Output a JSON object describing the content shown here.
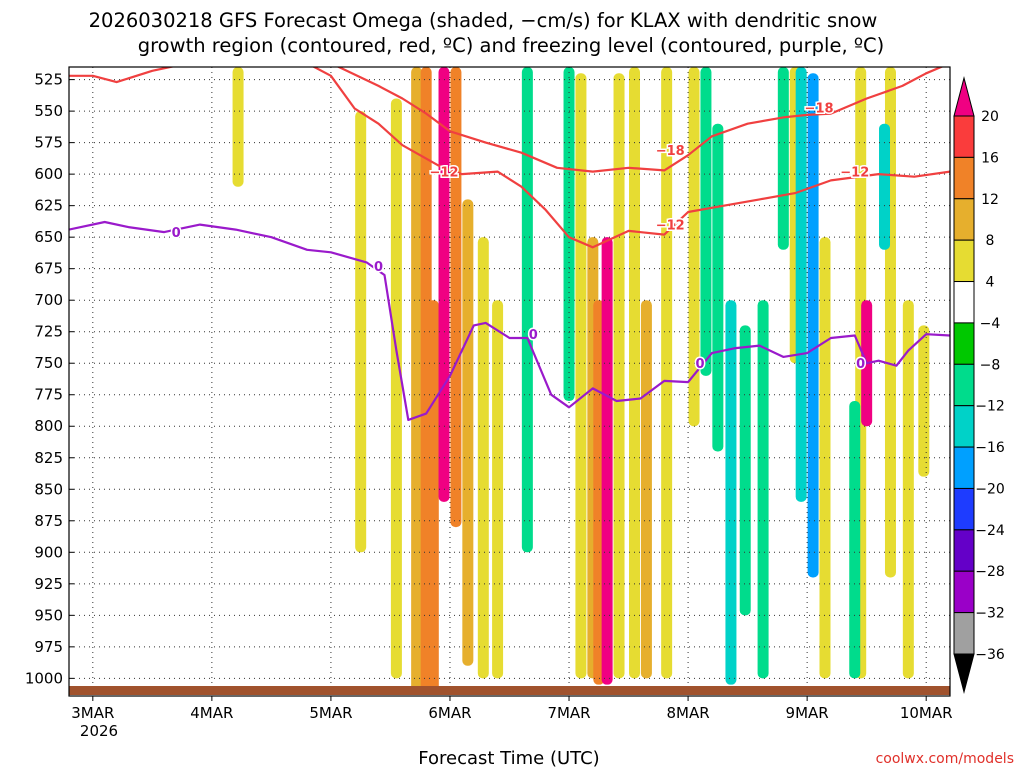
{
  "chart_data": {
    "type": "heatmap",
    "title": [
      "2026030218 GFS Forecast Omega (shaded, −cm/s) for KLAX with dendritic snow",
      "growth region (contoured, red, ºC) and freezing level (contoured, purple, ºC)"
    ],
    "xlabel": "Forecast Time (UTC)",
    "ylabel": "",
    "credit": "coolwx.com/models",
    "x_ticks": [
      "3MAR",
      "4MAR",
      "5MAR",
      "6MAR",
      "7MAR",
      "8MAR",
      "9MAR",
      "10MAR"
    ],
    "x_year": "2026",
    "x_range_days": [
      2.8,
      10.2
    ],
    "y_ticks": [
      525,
      550,
      575,
      600,
      625,
      650,
      675,
      700,
      725,
      750,
      775,
      800,
      825,
      850,
      875,
      900,
      925,
      950,
      975,
      1000
    ],
    "y_tick_labels": [
      "525",
      "550",
      "575",
      "600",
      "625",
      "650",
      "675",
      "700",
      "725",
      "750",
      "775",
      "800",
      "825",
      "850",
      "875",
      "900",
      "925",
      "950",
      "975",
      "1000"
    ],
    "y_range_hpa": [
      515,
      1014
    ],
    "grid": true,
    "colorbar": {
      "levels": [
        -36,
        -32,
        -28,
        -24,
        -20,
        -16,
        -12,
        -8,
        -4,
        4,
        8,
        12,
        16,
        20
      ],
      "labels": [
        "20",
        "16",
        "12",
        "8",
        "4",
        "−4",
        "−8",
        "−12",
        "−16",
        "−20",
        "−24",
        "−28",
        "−32",
        "−36"
      ],
      "colors": [
        "#000000",
        "#a0a0a0",
        "#9a00c8",
        "#6400c8",
        "#1e3cff",
        "#00a0ff",
        "#00d2c8",
        "#00dc8c",
        "#00c800",
        "#ffffff",
        "#e6dc32",
        "#e6af2d",
        "#f08228",
        "#fa3c3c",
        "#f00082"
      ]
    },
    "series": [
      {
        "name": "Omega shaded (−cm/s)",
        "cells": [
          {
            "t": 4.22,
            "p1": 515,
            "p2": 610,
            "v": 6
          },
          {
            "t": 5.25,
            "p1": 550,
            "p2": 900,
            "v": 5
          },
          {
            "t": 5.55,
            "p1": 540,
            "p2": 1000,
            "v": 6
          },
          {
            "t": 5.72,
            "p1": 515,
            "p2": 1012,
            "v": 10
          },
          {
            "t": 5.8,
            "p1": 515,
            "p2": 1012,
            "v": 14
          },
          {
            "t": 5.86,
            "p1": 700,
            "p2": 1012,
            "v": 15
          },
          {
            "t": 5.95,
            "p1": 515,
            "p2": 860,
            "v": 21
          },
          {
            "t": 6.05,
            "p1": 515,
            "p2": 880,
            "v": 14
          },
          {
            "t": 6.15,
            "p1": 620,
            "p2": 990,
            "v": 9
          },
          {
            "t": 6.28,
            "p1": 650,
            "p2": 1000,
            "v": 5
          },
          {
            "t": 6.4,
            "p1": 700,
            "p2": 1000,
            "v": 6
          },
          {
            "t": 7.1,
            "p1": 520,
            "p2": 1000,
            "v": 6
          },
          {
            "t": 7.2,
            "p1": 650,
            "p2": 1000,
            "v": 10
          },
          {
            "t": 7.25,
            "p1": 700,
            "p2": 1005,
            "v": 14
          },
          {
            "t": 7.32,
            "p1": 650,
            "p2": 1005,
            "v": 21
          },
          {
            "t": 7.42,
            "p1": 520,
            "p2": 1000,
            "v": 7
          },
          {
            "t": 7.55,
            "p1": 515,
            "p2": 1000,
            "v": 5
          },
          {
            "t": 7.65,
            "p1": 700,
            "p2": 1000,
            "v": 9
          },
          {
            "t": 7.82,
            "p1": 515,
            "p2": 1000,
            "v": 6
          },
          {
            "t": 8.05,
            "p1": 515,
            "p2": 800,
            "v": 6
          },
          {
            "t": 8.9,
            "p1": 515,
            "p2": 750,
            "v": 6
          },
          {
            "t": 9.15,
            "p1": 650,
            "p2": 1000,
            "v": 5
          },
          {
            "t": 9.45,
            "p1": 515,
            "p2": 1000,
            "v": 6
          },
          {
            "t": 9.5,
            "p1": 700,
            "p2": 800,
            "v": 21
          },
          {
            "t": 9.7,
            "p1": 515,
            "p2": 920,
            "v": 5
          },
          {
            "t": 9.85,
            "p1": 700,
            "p2": 1000,
            "v": 6
          },
          {
            "t": 9.98,
            "p1": 720,
            "p2": 840,
            "v": 5
          },
          {
            "t": 6.65,
            "p1": 515,
            "p2": 900,
            "v": -10
          },
          {
            "t": 7.0,
            "p1": 515,
            "p2": 780,
            "v": -10
          },
          {
            "t": 8.15,
            "p1": 515,
            "p2": 760,
            "v": -10
          },
          {
            "t": 8.25,
            "p1": 560,
            "p2": 820,
            "v": -10
          },
          {
            "t": 8.36,
            "p1": 700,
            "p2": 1005,
            "v": -14
          },
          {
            "t": 8.48,
            "p1": 720,
            "p2": 950,
            "v": -10
          },
          {
            "t": 8.63,
            "p1": 700,
            "p2": 1000,
            "v": -10
          },
          {
            "t": 8.8,
            "p1": 515,
            "p2": 660,
            "v": -10
          },
          {
            "t": 8.95,
            "p1": 515,
            "p2": 860,
            "v": -14
          },
          {
            "t": 9.05,
            "p1": 520,
            "p2": 920,
            "v": -18
          },
          {
            "t": 9.4,
            "p1": 780,
            "p2": 1000,
            "v": -10
          },
          {
            "t": 9.65,
            "p1": 560,
            "p2": 660,
            "v": -14
          }
        ]
      },
      {
        "name": "Dendritic growth region −12°C (red)",
        "t": [
          2.8,
          3.0,
          3.2,
          3.5,
          3.8,
          4.2,
          4.5,
          4.8,
          5.0,
          5.2,
          5.4,
          5.6,
          5.9,
          6.1,
          6.4,
          6.6,
          6.8,
          7.0,
          7.2,
          7.5,
          7.8,
          8.0,
          8.3,
          8.6,
          8.9,
          9.2,
          9.6,
          9.9,
          10.2
        ],
        "p": [
          522,
          522,
          527,
          518,
          512,
          508,
          510,
          512,
          522,
          548,
          560,
          577,
          593,
          600,
          598,
          610,
          628,
          650,
          658,
          645,
          648,
          630,
          625,
          620,
          615,
          605,
          600,
          602,
          598
        ]
      },
      {
        "name": "Dendritic growth region −18°C (red)",
        "t": [
          5.0,
          5.4,
          5.6,
          5.8,
          6.0,
          6.3,
          6.6,
          6.9,
          7.2,
          7.5,
          7.8,
          8.0,
          8.2,
          8.5,
          8.8,
          9.0,
          9.2,
          9.5,
          9.8,
          10.0,
          10.2
        ],
        "p": [
          512,
          530,
          540,
          552,
          566,
          575,
          583,
          595,
          598,
          595,
          597,
          585,
          570,
          560,
          555,
          553,
          552,
          540,
          530,
          520,
          512
        ]
      },
      {
        "name": "Freezing level 0°C (purple)",
        "t": [
          2.8,
          3.1,
          3.3,
          3.6,
          3.9,
          4.2,
          4.5,
          4.8,
          5.0,
          5.3,
          5.45,
          5.55,
          5.65,
          5.8,
          6.0,
          6.2,
          6.3,
          6.5,
          6.65,
          6.85,
          7.0,
          7.2,
          7.4,
          7.6,
          7.8,
          8.0,
          8.2,
          8.4,
          8.6,
          8.8,
          9.0,
          9.2,
          9.4,
          9.5,
          9.6,
          9.75,
          9.85,
          10.0,
          10.2
        ],
        "p": [
          644,
          638,
          642,
          646,
          640,
          644,
          650,
          660,
          662,
          670,
          680,
          740,
          795,
          790,
          760,
          720,
          718,
          730,
          730,
          775,
          785,
          770,
          780,
          778,
          764,
          765,
          742,
          738,
          736,
          745,
          742,
          730,
          728,
          750,
          748,
          752,
          740,
          727,
          728
        ]
      }
    ],
    "contour_labels": [
      {
        "text": "−12",
        "t": 4.15,
        "p": 510
      },
      {
        "text": "−12",
        "t": 5.95,
        "p": 598
      },
      {
        "text": "−12",
        "t": 7.85,
        "p": 640
      },
      {
        "text": "−18",
        "t": 7.85,
        "p": 581
      },
      {
        "text": "−18",
        "t": 9.1,
        "p": 547
      },
      {
        "text": "−12",
        "t": 9.4,
        "p": 598
      },
      {
        "text": "0",
        "t": 3.7,
        "p": 646
      },
      {
        "text": "0",
        "t": 5.4,
        "p": 673
      },
      {
        "text": "0",
        "t": 6.7,
        "p": 727
      },
      {
        "text": "0",
        "t": 8.1,
        "p": 750
      },
      {
        "text": "0",
        "t": 9.45,
        "p": 750
      }
    ]
  },
  "colors": {
    "dgz_contour": "#f04040",
    "freezing_contour": "#9a1acb",
    "terrain": "#a0522d",
    "grid": "#333333",
    "credit": "#e0302a"
  }
}
